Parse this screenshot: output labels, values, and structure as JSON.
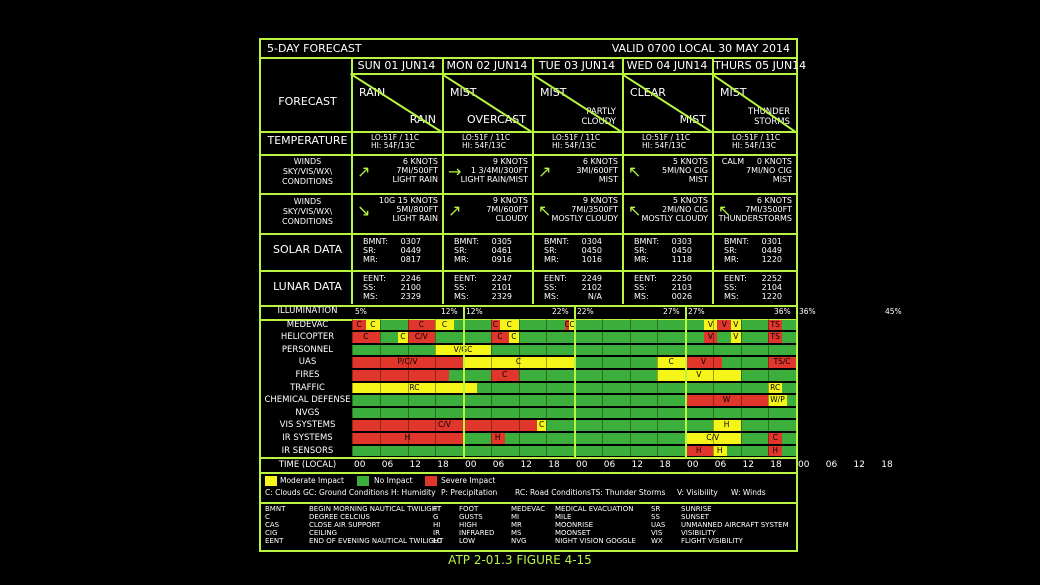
{
  "header": {
    "title": "5-DAY FORECAST",
    "valid": "VALID 0700 LOCAL 30 MAY 2014"
  },
  "days": [
    {
      "date": "SUN 01 JUN14",
      "forecast_top": "RAIN",
      "forecast_bottom": "RAIN"
    },
    {
      "date": "MON 02 JUN14",
      "forecast_top": "MIST",
      "forecast_bottom": "OVERCAST"
    },
    {
      "date": "TUE 03 JUN14",
      "forecast_top": "MIST",
      "forecast_bottom": "PARTLY\nCLOUDY"
    },
    {
      "date": "WED 04 JUN14",
      "forecast_top": "CLEAR",
      "forecast_bottom": "MIST"
    },
    {
      "date": "THURS 05 JUN14",
      "forecast_top": "MIST",
      "forecast_bottom": "THUNDER\nSTORMS"
    }
  ],
  "labels": {
    "forecast": "FORECAST",
    "temperature": "TEMPERATURE",
    "winds": "WINDS\nSKY/VIS/WX\\\nCONDITIONS",
    "solar": "SOLAR DATA",
    "lunar": "LUNAR DATA"
  },
  "temperature": [
    "LO:51F / 11C\nHI: 54F/13C",
    "LO:51F / 11C\nHI: 54F/13C",
    "LO:51F / 11C\nHI: 54F/13C",
    "LO:51F / 11C\nHI: 54F/13C",
    "LO:51F / 11C\nHI: 54F/13C"
  ],
  "winds1": [
    {
      "text": "6 KNOTS\n7MI/500FT\nLIGHT RAIN",
      "arrow": "↗"
    },
    {
      "text": "9 KNOTS\n1 3/4MI/300FT\nLIGHT RAIN/MIST",
      "arrow": "→"
    },
    {
      "text": "6 KNOTS\n3MI/600FT\nMIST",
      "arrow": "↗"
    },
    {
      "text": "5 KNOTS\n5MI/NO CIG\nMIST",
      "arrow": "↖"
    },
    {
      "text": "CALM     0 KNOTS\n7MI/NO CIG\nMIST",
      "arrow": ""
    }
  ],
  "winds2": [
    {
      "text": "10G 15 KNOTS\n5MI/800FT\nLIGHT RAIN",
      "arrow": "↘"
    },
    {
      "text": "9 KNOTS\n7MI/600FT\nCLOUDY",
      "arrow": "↗"
    },
    {
      "text": "9 KNOTS\n7MI/3500FT\nMOSTLY CLOUDY",
      "arrow": "↖"
    },
    {
      "text": "5 KNOTS\n2MI/NO CIG\nMOSTLY CLOUDY",
      "arrow": "↖"
    },
    {
      "text": "6 KNOTS\n7MI/3500FT\nTHUNDERSTORMS",
      "arrow": "↖"
    }
  ],
  "solar": [
    {
      "keys": "BMNT:\nSR:\nMR:",
      "vals": "0307\n0449\n0817"
    },
    {
      "keys": "BMNT:\nSR:\nMR:",
      "vals": "0305\n0461\n0916"
    },
    {
      "keys": "BMNT:\nSR:\nMR:",
      "vals": "0304\n0450\n1016"
    },
    {
      "keys": "BMNT:\nSR:\nMR:",
      "vals": "0303\n0450\n1118"
    },
    {
      "keys": "BMNT:\nSR:\nMR:",
      "vals": "0301\n0449\n1220"
    }
  ],
  "lunar": [
    {
      "keys": "EENT:\nSS:\nMS:",
      "vals": "2246\n2100\n2329"
    },
    {
      "keys": "EENT:\nSS:\nMS:",
      "vals": "2247\n2101\n2329"
    },
    {
      "keys": "EENT:\nSS:\nMS:",
      "vals": "2249\n2102\nN/A"
    },
    {
      "keys": "EENT:\nSS:\nMS:",
      "vals": "2250\n2103\n0026"
    },
    {
      "keys": "EENT:\nSS:\nMS:",
      "vals": "2252\n2104\n1220"
    }
  ],
  "illumination": {
    "label": "ILLUMINATION",
    "values": [
      [
        "5%",
        "12%"
      ],
      [
        "12%",
        "22%"
      ],
      [
        "22%",
        "27%"
      ],
      [
        "27%",
        "36%"
      ],
      [
        "36%",
        "45%"
      ]
    ]
  },
  "colors": {
    "accent": "#b7f541",
    "green": "#3cae3c",
    "yellow": "#f5f51a",
    "red": "#e0362b"
  },
  "impact_rows": [
    {
      "label": "MEDEVAC",
      "segs": [
        [
          0,
          3,
          "R",
          "C"
        ],
        [
          3,
          6,
          "Y",
          "C"
        ],
        [
          6,
          12,
          "G",
          ""
        ],
        [
          12,
          18,
          "R",
          "C"
        ],
        [
          18,
          22,
          "Y",
          "C"
        ],
        [
          22,
          24,
          "G",
          ""
        ],
        [
          24,
          30,
          "G",
          ""
        ],
        [
          30,
          32,
          "R",
          "C"
        ],
        [
          32,
          36,
          "Y",
          "C"
        ],
        [
          36,
          40,
          "G",
          ""
        ],
        [
          40,
          46,
          "G",
          ""
        ],
        [
          46,
          47,
          "R",
          "C"
        ],
        [
          47,
          48,
          "Y",
          "C"
        ],
        [
          48,
          60,
          "G",
          ""
        ],
        [
          60,
          76,
          "G",
          ""
        ],
        [
          76,
          79,
          "Y",
          "V"
        ],
        [
          79,
          82,
          "R",
          "V"
        ],
        [
          82,
          84,
          "Y",
          "V"
        ],
        [
          84,
          90,
          "G",
          ""
        ],
        [
          90,
          93,
          "R",
          "TS"
        ],
        [
          93,
          96,
          "G",
          ""
        ]
      ]
    },
    {
      "label": "HELICOPTER",
      "segs": [
        [
          0,
          6,
          "R",
          "C"
        ],
        [
          6,
          10,
          "G",
          ""
        ],
        [
          10,
          12,
          "Y",
          "C"
        ],
        [
          12,
          18,
          "R",
          "C/V"
        ],
        [
          18,
          24,
          "G",
          ""
        ],
        [
          24,
          30,
          "G",
          ""
        ],
        [
          30,
          34,
          "R",
          "C"
        ],
        [
          34,
          36,
          "Y",
          "C"
        ],
        [
          36,
          48,
          "G",
          ""
        ],
        [
          48,
          60,
          "G",
          ""
        ],
        [
          60,
          76,
          "G",
          ""
        ],
        [
          76,
          79,
          "R",
          "V"
        ],
        [
          79,
          82,
          "G",
          ""
        ],
        [
          82,
          84,
          "Y",
          "V"
        ],
        [
          84,
          90,
          "G",
          ""
        ],
        [
          90,
          93,
          "R",
          "TS"
        ],
        [
          93,
          96,
          "G",
          ""
        ]
      ]
    },
    {
      "label": "PERSONNEL",
      "segs": [
        [
          0,
          18,
          "G",
          ""
        ],
        [
          18,
          30,
          "Y",
          "V/GC"
        ],
        [
          30,
          96,
          "G",
          ""
        ]
      ]
    },
    {
      "label": "UAS",
      "segs": [
        [
          0,
          24,
          "R",
          "P/C/V"
        ],
        [
          24,
          48,
          "Y",
          "C"
        ],
        [
          48,
          66,
          "G",
          ""
        ],
        [
          66,
          72,
          "Y",
          "C"
        ],
        [
          72,
          80,
          "R",
          "V"
        ],
        [
          80,
          84,
          "G",
          ""
        ],
        [
          84,
          90,
          "G",
          ""
        ],
        [
          90,
          96,
          "R",
          "TS/C"
        ]
      ]
    },
    {
      "label": "FIRES",
      "segs": [
        [
          0,
          21,
          "R",
          ""
        ],
        [
          21,
          30,
          "G",
          ""
        ],
        [
          30,
          36,
          "R",
          "C"
        ],
        [
          36,
          66,
          "G",
          ""
        ],
        [
          66,
          84,
          "Y",
          "V"
        ],
        [
          84,
          96,
          "G",
          ""
        ]
      ]
    },
    {
      "label": "TRAFFIC",
      "segs": [
        [
          0,
          27,
          "Y",
          "RC"
        ],
        [
          27,
          90,
          "G",
          ""
        ],
        [
          90,
          93,
          "Y",
          "RC"
        ],
        [
          93,
          96,
          "G",
          ""
        ]
      ]
    },
    {
      "label": "CHEMICAL DEFENSE",
      "segs": [
        [
          0,
          72,
          "G",
          ""
        ],
        [
          72,
          90,
          "R",
          "W"
        ],
        [
          90,
          94,
          "Y",
          "W/P"
        ],
        [
          94,
          96,
          "G",
          ""
        ]
      ]
    },
    {
      "label": "NVGS",
      "segs": [
        [
          0,
          96,
          "G",
          ""
        ]
      ]
    },
    {
      "label": "VIS SYSTEMS",
      "segs": [
        [
          0,
          40,
          "R",
          "C/V"
        ],
        [
          40,
          42,
          "Y",
          "C"
        ],
        [
          42,
          78,
          "G",
          ""
        ],
        [
          78,
          84,
          "Y",
          "H"
        ],
        [
          84,
          96,
          "G",
          ""
        ]
      ]
    },
    {
      "label": "IR SYSTEMS",
      "segs": [
        [
          0,
          24,
          "R",
          "H"
        ],
        [
          24,
          30,
          "G",
          ""
        ],
        [
          30,
          33,
          "R",
          "H"
        ],
        [
          33,
          72,
          "G",
          ""
        ],
        [
          72,
          84,
          "Y",
          "C/V"
        ],
        [
          84,
          90,
          "G",
          ""
        ],
        [
          90,
          93,
          "R",
          "C"
        ],
        [
          93,
          96,
          "G",
          ""
        ]
      ]
    },
    {
      "label": "IR SENSORS",
      "segs": [
        [
          0,
          66,
          "G",
          ""
        ],
        [
          66,
          72,
          "G",
          ""
        ],
        [
          72,
          78,
          "R",
          "H"
        ],
        [
          78,
          81,
          "Y",
          "H"
        ],
        [
          81,
          90,
          "G",
          ""
        ],
        [
          90,
          93,
          "R",
          "H"
        ],
        [
          93,
          96,
          "G",
          ""
        ]
      ]
    }
  ],
  "time_row": {
    "label": "TIME (LOCAL)",
    "ticks": [
      "00",
      "06",
      "12",
      "18",
      "00",
      "06",
      "12",
      "18",
      "00",
      "06",
      "12",
      "18",
      "00",
      "06",
      "12",
      "18",
      "00",
      "06",
      "12",
      "18"
    ]
  },
  "legend": {
    "moderate": "Moderate Impact",
    "none": "No Impact",
    "severe": "Severe Impact",
    "codes": [
      "C: Clouds",
      "GC: Ground Conditions",
      "H: Humidity",
      "P: Precipitation",
      "RC: Road Conditions",
      "TS: Thunder Storms",
      "V: Visibility",
      "W: Winds"
    ]
  },
  "abbrev": {
    "col1k": "BMNT\nC\nCAS\nCIG\nEENT",
    "col1v": "BEGIN MORNING NAUTICAL TWILIGHT\nDEGREE CELCIUS\nCLOSE AIR SUPPORT\nCEILING\nEND OF EVENING NAUTICAL TWILIGHT",
    "col2k": "FT\nG\nHI\nIR\nLO",
    "col2v": "FOOT\nGUSTS\nHIGH\nINFRARED\nLOW",
    "col3k": "MEDEVAC\nMI\nMR\nMS\nNVG",
    "col3v": "MEDICAL EVACUATION\nMILE\nMOONRISE\nMOONSET\nNIGHT VISION GOGGLE",
    "col4k": "SR\nSS\nUAS\nVIS\nWX",
    "col4v": "SUNRISE\nSUNSET\nUNMANNED AIRCRAFT SYSTEM\nVISIBILITY\nFLIGHT VISIBILITY"
  },
  "caption": "ATP 2-01.3 FIGURE 4-15"
}
